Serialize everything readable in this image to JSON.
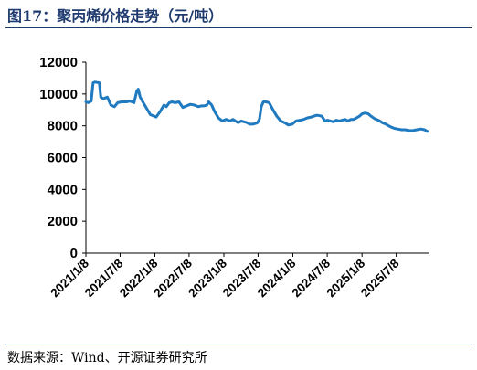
{
  "figure": {
    "title": "图17：聚丙烯价格走势（元/吨）",
    "source": "数据来源：Wind、开源证券研究所"
  },
  "colors": {
    "series": "#1f7ac0",
    "title": "#1f3a6e"
  },
  "chart_data": {
    "type": "line",
    "title": "",
    "xlabel": "",
    "ylabel": "",
    "ylim": [
      0,
      12000
    ],
    "yticks": [
      "0",
      "2000",
      "4000",
      "6000",
      "8000",
      "10000",
      "12000"
    ],
    "xlim": [
      "2021-01-08",
      "2025-12-31"
    ],
    "xticks": [
      {
        "label": "2021/1/8",
        "date": "2021-01-08"
      },
      {
        "label": "2021/7/8",
        "date": "2021-07-08"
      },
      {
        "label": "2022/1/8",
        "date": "2022-01-08"
      },
      {
        "label": "2022/7/8",
        "date": "2022-07-08"
      },
      {
        "label": "2023/1/8",
        "date": "2023-01-08"
      },
      {
        "label": "2023/7/8",
        "date": "2023-07-08"
      },
      {
        "label": "2024/1/8",
        "date": "2024-01-08"
      },
      {
        "label": "2024/7/8",
        "date": "2024-07-08"
      },
      {
        "label": "2025/1/8",
        "date": "2025-01-08"
      },
      {
        "label": "2025/7/8",
        "date": "2025-07-08"
      }
    ],
    "grid": false,
    "legend": "none",
    "series": [
      {
        "x": [
          "2021-01-08",
          "2021-01-20",
          "2021-02-05",
          "2021-02-15",
          "2021-02-25",
          "2021-03-20",
          "2021-03-28",
          "2021-04-10",
          "2021-05-01",
          "2021-05-20",
          "2021-06-08",
          "2021-06-25",
          "2021-07-15",
          "2021-08-10",
          "2021-08-30",
          "2021-09-20",
          "2021-10-05",
          "2021-10-12",
          "2021-10-22",
          "2021-11-05",
          "2021-11-25",
          "2021-12-15",
          "2022-01-05",
          "2022-01-15",
          "2022-02-05",
          "2022-02-25",
          "2022-03-10",
          "2022-03-25",
          "2022-04-10",
          "2022-04-25",
          "2022-05-15",
          "2022-06-05",
          "2022-06-25",
          "2022-07-15",
          "2022-08-05",
          "2022-08-25",
          "2022-09-10",
          "2022-09-25",
          "2022-10-10",
          "2022-10-20",
          "2022-11-05",
          "2022-11-20",
          "2022-12-10",
          "2022-12-31",
          "2023-01-20",
          "2023-02-10",
          "2023-02-25",
          "2023-03-10",
          "2023-03-25",
          "2023-04-10",
          "2023-04-25",
          "2023-05-10",
          "2023-05-25",
          "2023-06-10",
          "2023-06-25",
          "2023-07-05",
          "2023-07-15",
          "2023-07-25",
          "2023-08-05",
          "2023-08-20",
          "2023-09-05",
          "2023-09-25",
          "2023-10-15",
          "2023-11-05",
          "2023-11-25",
          "2023-12-15",
          "2024-01-05",
          "2024-01-25",
          "2024-02-15",
          "2024-03-05",
          "2024-03-25",
          "2024-04-15",
          "2024-05-10",
          "2024-05-20",
          "2024-06-10",
          "2024-06-25",
          "2024-07-10",
          "2024-07-25",
          "2024-08-10",
          "2024-08-25",
          "2024-09-10",
          "2024-09-25",
          "2024-10-10",
          "2024-10-25",
          "2024-11-10",
          "2024-11-25",
          "2024-12-10",
          "2024-12-25",
          "2025-01-08",
          "2025-01-25",
          "2025-02-10",
          "2025-02-25",
          "2025-03-15",
          "2025-04-05",
          "2025-04-25",
          "2025-05-15",
          "2025-06-05",
          "2025-06-25",
          "2025-07-15",
          "2025-08-05",
          "2025-08-25",
          "2025-09-15",
          "2025-10-05",
          "2025-10-25",
          "2025-11-15",
          "2025-12-05",
          "2025-12-20"
        ],
        "y": [
          9500,
          9450,
          9550,
          10700,
          10750,
          10700,
          9800,
          9700,
          9800,
          9300,
          9200,
          9450,
          9500,
          9500,
          9550,
          9450,
          10200,
          10300,
          9800,
          9500,
          9100,
          8700,
          8600,
          8550,
          8900,
          9300,
          9200,
          9450,
          9500,
          9450,
          9500,
          9150,
          9250,
          9350,
          9300,
          9200,
          9250,
          9250,
          9300,
          9500,
          9300,
          8900,
          8500,
          8300,
          8400,
          8300,
          8400,
          8300,
          8200,
          8300,
          8250,
          8200,
          8100,
          8100,
          8150,
          8200,
          8400,
          9200,
          9500,
          9500,
          9450,
          9000,
          8600,
          8300,
          8200,
          8050,
          8100,
          8300,
          8350,
          8400,
          8500,
          8550,
          8650,
          8650,
          8600,
          8300,
          8350,
          8300,
          8250,
          8350,
          8300,
          8350,
          8400,
          8300,
          8400,
          8400,
          8500,
          8600,
          8750,
          8800,
          8750,
          8600,
          8450,
          8350,
          8200,
          8100,
          7950,
          7850,
          7800,
          7750,
          7750,
          7700,
          7700,
          7750,
          7800,
          7750,
          7650
        ]
      }
    ]
  }
}
